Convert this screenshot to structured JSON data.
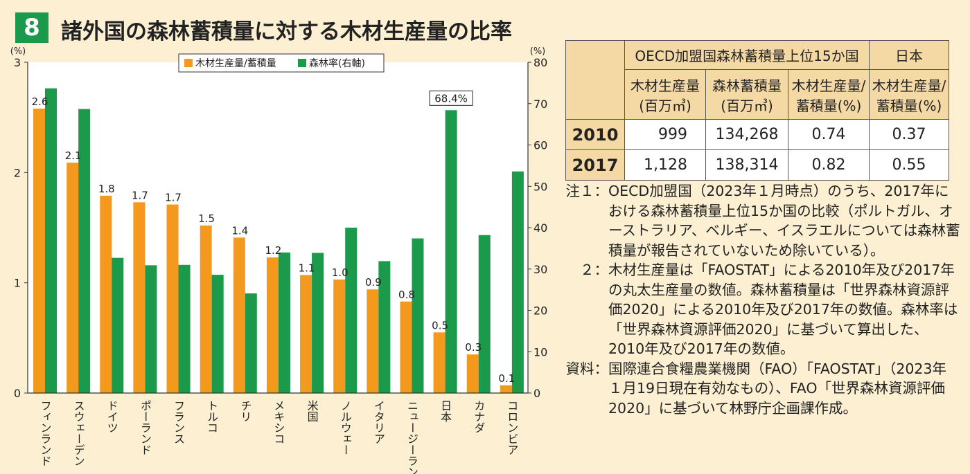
{
  "figure_number": "8",
  "title": "諸外国の森林蓄積量に対する木材生産量の比率",
  "chart_data": {
    "type": "bar",
    "categories": [
      "フィンランド",
      "スウェーデン",
      "ドイツ",
      "ポーランド",
      "フランス",
      "トルコ",
      "チリ",
      "メキシコ",
      "米国",
      "ノルウェー",
      "イタリア",
      "ニュージーランド",
      "日本",
      "カナダ",
      "コロンビア"
    ],
    "series": [
      {
        "name": "木材生産量/蓄積量",
        "axis": "left",
        "color": "#f39a1e",
        "values": [
          2.6,
          2.1,
          1.8,
          1.7,
          1.7,
          1.5,
          1.4,
          1.2,
          1.1,
          1.0,
          0.9,
          0.8,
          0.5,
          0.3,
          0.1
        ],
        "plot_values": [
          2.58,
          2.09,
          1.79,
          1.73,
          1.71,
          1.52,
          1.41,
          1.23,
          1.07,
          1.03,
          0.94,
          0.83,
          0.55,
          0.35,
          0.07
        ],
        "labels": [
          "2.6",
          "2.1",
          "1.8",
          "1.7",
          "1.7",
          "1.5",
          "1.4",
          "1.2",
          "1.1",
          "1.0",
          "0.9",
          "0.8",
          "0.5",
          "0.3",
          "0.1"
        ]
      },
      {
        "name": "森林率(右軸)",
        "axis": "right",
        "color": "#1a9a4a",
        "values": [
          73.7,
          68.7,
          32.7,
          30.9,
          31.0,
          28.6,
          24.1,
          34.0,
          33.9,
          40.0,
          31.9,
          37.4,
          68.4,
          38.2,
          53.6
        ],
        "callout": {
          "index": 12,
          "label": "68.4%"
        }
      }
    ],
    "left_axis": {
      "unit": "(%)",
      "min": 0,
      "max": 3,
      "ticks": [
        0,
        1,
        2,
        3
      ]
    },
    "right_axis": {
      "unit": "(%)",
      "min": 0,
      "max": 80,
      "ticks": [
        0,
        10,
        20,
        30,
        40,
        50,
        60,
        70,
        80
      ]
    },
    "legend": {
      "placement": "top-center"
    },
    "grid": false
  },
  "table": {
    "group_header_oecd": "OECD加盟国森林蓄積量上位15か国",
    "group_header_japan": "日本",
    "col_production": [
      "木材生産量",
      "(百万㎥)"
    ],
    "col_stock": [
      "森林蓄積量",
      "(百万㎥)"
    ],
    "col_ratio": [
      "木材生産量/",
      "蓄積量(%)"
    ],
    "col_japan_ratio": [
      "木材生産量/",
      "蓄積量(%)"
    ],
    "rows": [
      {
        "year": "2010",
        "production": "999",
        "stock": "134,268",
        "ratio": "0.74",
        "japan_ratio": "0.37"
      },
      {
        "year": "2017",
        "production": "1,128",
        "stock": "138,314",
        "ratio": "0.82",
        "japan_ratio": "0.55"
      }
    ]
  },
  "notes": [
    {
      "label": "注１：",
      "text": "OECD加盟国（2023年１月時点）のうち、2017年における森林蓄積量上位15か国の比較（ポルトガル、オーストラリア、ベルギー、イスラエルについては森林蓄積量が報告されていないため除いている）。"
    },
    {
      "label": "２：",
      "text": "木材生産量は「FAOSTAT」による2010年及び2017年の丸太生産量の数値。森林蓄積量は「世界森林資源評価2020」による2010年及び2017年の数値。森林率は「世界森林資源評価2020」に基づいて算出した、2010年及び2017年の数値。"
    },
    {
      "label": "資料：",
      "text": "国際連合食糧農業機関（FAO）「FAOSTAT」（2023年１月19日現在有効なもの）、FAO「世界森林資源評価2020」に基づいて林野庁企画課作成。"
    }
  ]
}
